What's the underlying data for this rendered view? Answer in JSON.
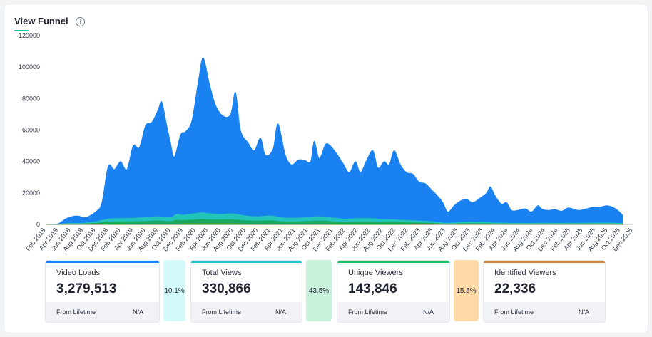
{
  "widget": {
    "title": "View Funnel",
    "info_icon": "info-icon"
  },
  "chart_data": {
    "type": "area",
    "yticks": [
      0,
      20000,
      40000,
      60000,
      80000,
      100000,
      120000
    ],
    "ytick_labels": [
      "0",
      "20000",
      "40000",
      "60000",
      "80000",
      "100000",
      "120000"
    ],
    "ylim": [
      0,
      120000
    ],
    "xtick_labels": [
      "Feb 2018",
      "Apr 2018",
      "Jun 2018",
      "Aug 2018",
      "Oct 2018",
      "Dec 2018",
      "Feb 2019",
      "Apr 2019",
      "Jun 2019",
      "Aug 2019",
      "Oct 2019",
      "Dec 2019",
      "Feb 2020",
      "Apr 2020",
      "Jun 2020",
      "Aug 2020",
      "Oct 2020",
      "Dec 2020",
      "Feb 2021",
      "Apr 2021",
      "Jun 2021",
      "Aug 2021",
      "Oct 2021",
      "Dec 2021",
      "Feb 2022",
      "Apr 2022",
      "Jun 2022",
      "Aug 2022",
      "Oct 2022",
      "Dec 2022",
      "Feb 2023",
      "Apr 2023",
      "Jun 2023",
      "Aug 2023",
      "Oct 2023",
      "Dec 2023",
      "Feb 2024",
      "Apr 2024",
      "Jun 2024",
      "Aug 2024",
      "Oct 2024",
      "Dec 2024",
      "Feb 2025",
      "Apr 2025",
      "Jun 2025",
      "Aug 2025",
      "Oct 2025",
      "Dec 2025"
    ],
    "series": [
      {
        "name": "Video Loads",
        "color": "#1a82f0",
        "points": [
          [
            0,
            0
          ],
          [
            0.5,
            200
          ],
          [
            1,
            400
          ],
          [
            1.7,
            4000
          ],
          [
            2.5,
            5500
          ],
          [
            3.2,
            4500
          ],
          [
            4,
            8000
          ],
          [
            4.5,
            14000
          ],
          [
            5,
            37000
          ],
          [
            5.5,
            35000
          ],
          [
            6,
            40000
          ],
          [
            6.5,
            35000
          ],
          [
            7,
            50000
          ],
          [
            7.5,
            49000
          ],
          [
            8,
            63000
          ],
          [
            8.5,
            65000
          ],
          [
            9,
            73000
          ],
          [
            9.3,
            78000
          ],
          [
            9.7,
            63000
          ],
          [
            10,
            52000
          ],
          [
            10.3,
            43000
          ],
          [
            10.8,
            57000
          ],
          [
            11.2,
            59000
          ],
          [
            11.7,
            66000
          ],
          [
            12.2,
            90000
          ],
          [
            12.6,
            106000
          ],
          [
            13.1,
            90000
          ],
          [
            13.6,
            76000
          ],
          [
            14.2,
            69000
          ],
          [
            14.8,
            70000
          ],
          [
            15.2,
            84000
          ],
          [
            15.6,
            60000
          ],
          [
            16.2,
            52000
          ],
          [
            16.7,
            47000
          ],
          [
            17.2,
            55000
          ],
          [
            17.6,
            44000
          ],
          [
            18.2,
            48000
          ],
          [
            18.6,
            64000
          ],
          [
            19.2,
            44000
          ],
          [
            19.7,
            38000
          ],
          [
            20.2,
            41000
          ],
          [
            20.7,
            41000
          ],
          [
            21.2,
            40000
          ],
          [
            21.5,
            53000
          ],
          [
            21.9,
            42000
          ],
          [
            22.4,
            51000
          ],
          [
            22.8,
            50000
          ],
          [
            23.3,
            45000
          ],
          [
            23.8,
            39000
          ],
          [
            24.3,
            33000
          ],
          [
            24.8,
            40000
          ],
          [
            25.2,
            33000
          ],
          [
            25.7,
            41000
          ],
          [
            26.2,
            47000
          ],
          [
            26.6,
            36000
          ],
          [
            27.1,
            40000
          ],
          [
            27.5,
            38000
          ],
          [
            27.9,
            47000
          ],
          [
            28.4,
            38000
          ],
          [
            28.9,
            33000
          ],
          [
            29.4,
            32000
          ],
          [
            29.9,
            27000
          ],
          [
            30.4,
            26000
          ],
          [
            30.9,
            22000
          ],
          [
            31.4,
            18000
          ],
          [
            31.8,
            14000
          ],
          [
            32.2,
            8000
          ],
          [
            32.7,
            12000
          ],
          [
            33.2,
            15000
          ],
          [
            33.7,
            16000
          ],
          [
            34.2,
            14000
          ],
          [
            34.8,
            17000
          ],
          [
            35.3,
            20000
          ],
          [
            35.6,
            24000
          ],
          [
            36,
            18000
          ],
          [
            36.5,
            13000
          ],
          [
            36.9,
            14000
          ],
          [
            37.3,
            9000
          ],
          [
            37.8,
            9000
          ],
          [
            38.4,
            10000
          ],
          [
            38.9,
            8000
          ],
          [
            39.4,
            12000
          ],
          [
            39.7,
            10000
          ],
          [
            40.2,
            9000
          ],
          [
            40.8,
            9500
          ],
          [
            41.3,
            8500
          ],
          [
            41.8,
            10500
          ],
          [
            42.2,
            10000
          ],
          [
            42.7,
            9000
          ],
          [
            43.3,
            10000
          ],
          [
            43.8,
            11000
          ],
          [
            44.4,
            11000
          ],
          [
            44.9,
            12000
          ],
          [
            45.4,
            11000
          ],
          [
            45.8,
            9000
          ],
          [
            46.2,
            6000
          ]
        ]
      },
      {
        "name": "Total Views",
        "color": "#22c4b8",
        "points": [
          [
            0,
            0
          ],
          [
            1,
            50
          ],
          [
            1.7,
            700
          ],
          [
            3,
            900
          ],
          [
            4,
            1800
          ],
          [
            5,
            3500
          ],
          [
            6,
            3800
          ],
          [
            7,
            4000
          ],
          [
            8,
            4500
          ],
          [
            9,
            5000
          ],
          [
            10,
            4500
          ],
          [
            10.5,
            6500
          ],
          [
            11,
            6000
          ],
          [
            12,
            7000
          ],
          [
            12.5,
            7500
          ],
          [
            13,
            7000
          ],
          [
            14,
            6500
          ],
          [
            15,
            6800
          ],
          [
            16,
            5500
          ],
          [
            17,
            5000
          ],
          [
            18,
            5500
          ],
          [
            19,
            4200
          ],
          [
            20,
            4000
          ],
          [
            21,
            4500
          ],
          [
            22,
            5000
          ],
          [
            23,
            4200
          ],
          [
            24,
            3500
          ],
          [
            25,
            3800
          ],
          [
            26,
            3800
          ],
          [
            27,
            3200
          ],
          [
            28,
            3000
          ],
          [
            29,
            2600
          ],
          [
            30,
            2200
          ],
          [
            31,
            1800
          ],
          [
            32,
            900
          ],
          [
            33,
            1200
          ],
          [
            34,
            1500
          ],
          [
            35,
            1300
          ],
          [
            36,
            1000
          ],
          [
            37,
            900
          ],
          [
            38,
            800
          ],
          [
            39,
            800
          ],
          [
            40,
            900
          ],
          [
            41,
            800
          ],
          [
            42,
            900
          ],
          [
            43,
            900
          ],
          [
            44,
            1000
          ],
          [
            45,
            1000
          ],
          [
            46.2,
            700
          ]
        ]
      },
      {
        "name": "Unique Viewers",
        "color": "#1aa85c",
        "points": [
          [
            0,
            0
          ],
          [
            1,
            20
          ],
          [
            1.7,
            300
          ],
          [
            3,
            400
          ],
          [
            4,
            800
          ],
          [
            5,
            1500
          ],
          [
            6,
            1700
          ],
          [
            7,
            1800
          ],
          [
            8,
            2000
          ],
          [
            9,
            2300
          ],
          [
            10,
            2000
          ],
          [
            10.5,
            2800
          ],
          [
            11,
            2600
          ],
          [
            12,
            3000
          ],
          [
            12.5,
            3200
          ],
          [
            13,
            3000
          ],
          [
            14,
            2900
          ],
          [
            15,
            3000
          ],
          [
            16,
            2400
          ],
          [
            17,
            2200
          ],
          [
            18,
            2400
          ],
          [
            19,
            1800
          ],
          [
            20,
            1700
          ],
          [
            21,
            2000
          ],
          [
            22,
            2200
          ],
          [
            23,
            1800
          ],
          [
            24,
            1500
          ],
          [
            25,
            1600
          ],
          [
            26,
            1600
          ],
          [
            27,
            1400
          ],
          [
            28,
            1300
          ],
          [
            29,
            1100
          ],
          [
            30,
            1000
          ],
          [
            31,
            800
          ],
          [
            32,
            400
          ],
          [
            33,
            500
          ],
          [
            34,
            650
          ],
          [
            35,
            560
          ],
          [
            36,
            450
          ],
          [
            37,
            400
          ],
          [
            38,
            350
          ],
          [
            39,
            350
          ],
          [
            40,
            400
          ],
          [
            41,
            350
          ],
          [
            42,
            400
          ],
          [
            43,
            400
          ],
          [
            44,
            450
          ],
          [
            45,
            450
          ],
          [
            46.2,
            300
          ]
        ]
      },
      {
        "name": "Identified Viewers",
        "color": "#c98a2e",
        "points": [
          [
            0,
            0
          ],
          [
            1,
            0
          ],
          [
            1.7,
            40
          ],
          [
            3,
            60
          ],
          [
            4,
            120
          ],
          [
            5,
            220
          ],
          [
            6,
            250
          ],
          [
            7,
            270
          ],
          [
            8,
            300
          ],
          [
            9,
            330
          ],
          [
            10,
            300
          ],
          [
            11,
            400
          ],
          [
            12,
            450
          ],
          [
            13,
            430
          ],
          [
            14,
            420
          ],
          [
            15,
            430
          ],
          [
            16,
            350
          ],
          [
            17,
            320
          ],
          [
            18,
            350
          ],
          [
            19,
            260
          ],
          [
            20,
            250
          ],
          [
            21,
            290
          ],
          [
            22,
            320
          ],
          [
            23,
            260
          ],
          [
            24,
            220
          ],
          [
            25,
            230
          ],
          [
            26,
            230
          ],
          [
            27,
            200
          ],
          [
            28,
            190
          ],
          [
            29,
            160
          ],
          [
            30,
            140
          ],
          [
            31,
            120
          ],
          [
            32,
            60
          ],
          [
            33,
            70
          ],
          [
            34,
            90
          ],
          [
            35,
            80
          ],
          [
            36,
            70
          ],
          [
            37,
            60
          ],
          [
            38,
            50
          ],
          [
            39,
            50
          ],
          [
            40,
            60
          ],
          [
            41,
            50
          ],
          [
            42,
            60
          ],
          [
            43,
            60
          ],
          [
            44,
            65
          ],
          [
            45,
            65
          ],
          [
            46.2,
            45
          ]
        ]
      }
    ]
  },
  "funnel": {
    "cards": [
      {
        "label": "Video Loads",
        "value": "3,279,513",
        "foot_left": "From Lifetime",
        "foot_right": "N/A",
        "accent": "#1a82f0"
      },
      {
        "label": "Total Views",
        "value": "330,866",
        "foot_left": "From Lifetime",
        "foot_right": "N/A",
        "accent": "#22c4c8"
      },
      {
        "label": "Unique Viewers",
        "value": "143,846",
        "foot_left": "From Lifetime",
        "foot_right": "N/A",
        "accent": "#1fbf6a"
      },
      {
        "label": "Identified Viewers",
        "value": "22,336",
        "foot_left": "From Lifetime",
        "foot_right": "N/A",
        "accent": "#c98a42"
      }
    ],
    "rates": [
      {
        "value": "10.1%",
        "color": "#d4fbfc"
      },
      {
        "value": "43.5%",
        "color": "#c9f1dc"
      },
      {
        "value": "15.5%",
        "color": "#ffd9a8"
      }
    ]
  }
}
